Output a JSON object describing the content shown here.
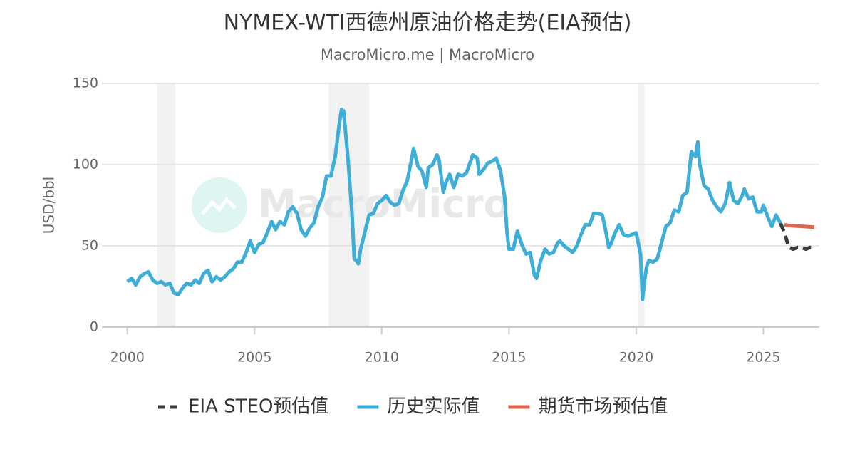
{
  "chart_data": {
    "type": "line",
    "title": "NYMEX-WTI西德州原油价格走势(EIA预估)",
    "subtitle": "MacroMicro.me | MacroMicro",
    "watermark": "MacroMicro",
    "y_label": "USD/bbl",
    "xlim": [
      1999,
      2027.2
    ],
    "xticks": [
      2000,
      2005,
      2010,
      2015,
      2020,
      2025
    ],
    "ylim": [
      0,
      150
    ],
    "yticks": [
      0,
      50,
      100,
      150
    ],
    "grid": true,
    "recession_bands": [
      [
        2001.17,
        2001.88
      ],
      [
        2007.92,
        2009.5
      ],
      [
        2020.08,
        2020.33
      ]
    ],
    "series": [
      {
        "name": "EIA STEO预估值",
        "color": "#3a3a3a",
        "dashed": true,
        "x": [
          2025.67,
          2025.83,
          2026.0,
          2026.17,
          2026.33,
          2026.5,
          2026.67,
          2026.83,
          2027.0
        ],
        "values": [
          64,
          58,
          49,
          48,
          49,
          49,
          48,
          49,
          49
        ]
      },
      {
        "name": "历史实际值",
        "color": "#3eaed8",
        "dashed": false,
        "x": [
          2000.0,
          2000.17,
          2000.33,
          2000.5,
          2000.67,
          2000.83,
          2001.0,
          2001.17,
          2001.33,
          2001.5,
          2001.67,
          2001.83,
          2002.0,
          2002.17,
          2002.33,
          2002.5,
          2002.67,
          2002.83,
          2003.0,
          2003.17,
          2003.33,
          2003.5,
          2003.67,
          2003.83,
          2004.0,
          2004.17,
          2004.33,
          2004.5,
          2004.67,
          2004.83,
          2005.0,
          2005.17,
          2005.33,
          2005.5,
          2005.67,
          2005.83,
          2006.0,
          2006.17,
          2006.33,
          2006.5,
          2006.67,
          2006.83,
          2007.0,
          2007.17,
          2007.33,
          2007.5,
          2007.67,
          2007.83,
          2008.0,
          2008.17,
          2008.33,
          2008.42,
          2008.5,
          2008.67,
          2008.83,
          2008.92,
          2009.0,
          2009.08,
          2009.17,
          2009.33,
          2009.5,
          2009.67,
          2009.83,
          2010.0,
          2010.17,
          2010.33,
          2010.5,
          2010.67,
          2010.83,
          2011.0,
          2011.17,
          2011.25,
          2011.42,
          2011.58,
          2011.75,
          2011.83,
          2012.0,
          2012.17,
          2012.25,
          2012.42,
          2012.5,
          2012.67,
          2012.83,
          2013.0,
          2013.17,
          2013.33,
          2013.58,
          2013.75,
          2013.83,
          2014.0,
          2014.17,
          2014.33,
          2014.5,
          2014.67,
          2014.83,
          2014.92,
          2015.0,
          2015.17,
          2015.33,
          2015.5,
          2015.67,
          2015.83,
          2016.0,
          2016.08,
          2016.25,
          2016.42,
          2016.58,
          2016.75,
          2016.92,
          2017.0,
          2017.17,
          2017.33,
          2017.5,
          2017.67,
          2017.83,
          2018.0,
          2018.17,
          2018.33,
          2018.5,
          2018.67,
          2018.83,
          2018.92,
          2019.0,
          2019.17,
          2019.33,
          2019.5,
          2019.67,
          2019.83,
          2020.0,
          2020.17,
          2020.25,
          2020.33,
          2020.42,
          2020.5,
          2020.67,
          2020.83,
          2021.0,
          2021.17,
          2021.33,
          2021.5,
          2021.67,
          2021.83,
          2022.0,
          2022.17,
          2022.33,
          2022.42,
          2022.5,
          2022.67,
          2022.83,
          2023.0,
          2023.17,
          2023.33,
          2023.5,
          2023.67,
          2023.83,
          2024.0,
          2024.17,
          2024.25,
          2024.42,
          2024.58,
          2024.75,
          2024.92,
          2025.0,
          2025.17,
          2025.33,
          2025.5,
          2025.67
        ],
        "values": [
          28,
          30,
          26,
          31,
          33,
          34,
          29,
          27,
          28,
          26,
          27,
          21,
          20,
          24,
          27,
          26,
          29,
          27,
          33,
          35,
          28,
          31,
          29,
          31,
          34,
          36,
          40,
          40,
          46,
          53,
          46,
          51,
          52,
          58,
          65,
          60,
          65,
          63,
          71,
          74,
          70,
          60,
          56,
          61,
          64,
          74,
          80,
          93,
          93,
          105,
          125,
          134,
          133,
          104,
          70,
          42,
          41,
          39,
          48,
          58,
          69,
          70,
          76,
          78,
          81,
          77,
          75,
          76,
          84,
          90,
          103,
          110,
          99,
          96,
          86,
          98,
          100,
          106,
          103,
          83,
          88,
          94,
          86,
          94,
          93,
          95,
          106,
          104,
          94,
          97,
          101,
          102,
          104,
          96,
          80,
          59,
          48,
          48,
          59,
          51,
          45,
          46,
          32,
          30,
          41,
          48,
          45,
          46,
          52,
          53,
          50,
          48,
          46,
          50,
          57,
          63,
          63,
          70,
          70,
          69,
          57,
          49,
          51,
          58,
          63,
          57,
          56,
          57,
          58,
          45,
          17,
          29,
          38,
          41,
          40,
          42,
          52,
          62,
          64,
          72,
          71,
          81,
          83,
          108,
          105,
          114,
          100,
          87,
          85,
          78,
          74,
          71,
          76,
          89,
          78,
          76,
          81,
          85,
          79,
          80,
          71,
          71,
          75,
          68,
          62,
          69,
          64
        ]
      },
      {
        "name": "期货市场预估值",
        "color": "#e06650",
        "dashed": false,
        "x": [
          2025.83,
          2026.0,
          2026.5,
          2027.0
        ],
        "values": [
          63,
          62.5,
          62,
          61.5
        ]
      }
    ]
  }
}
